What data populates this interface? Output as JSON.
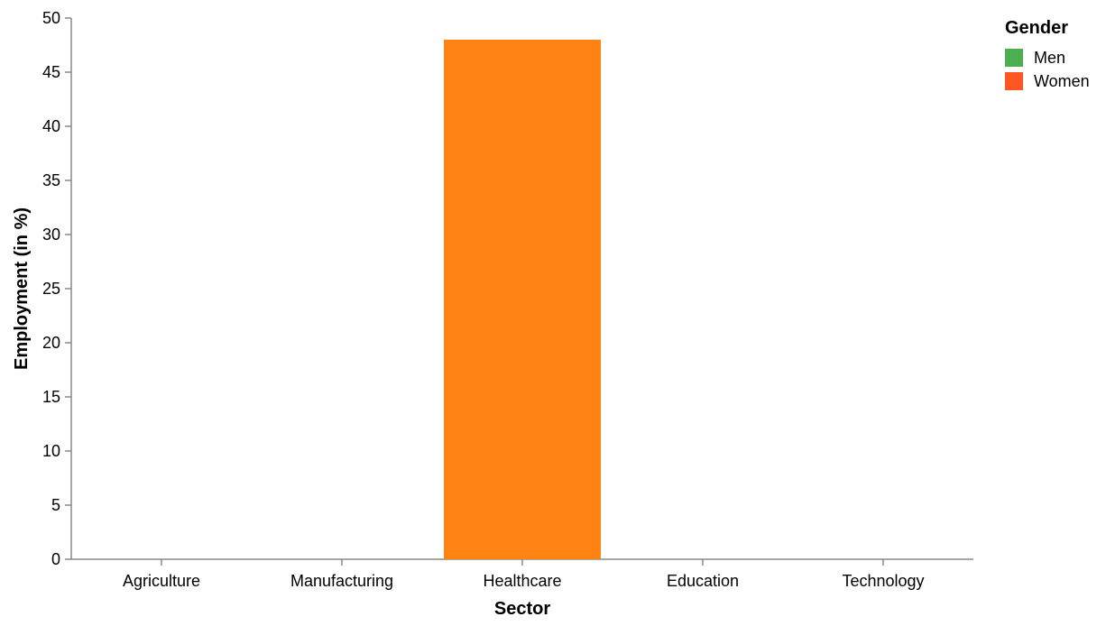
{
  "chart_data": {
    "type": "bar",
    "categories": [
      "Agriculture",
      "Manufacturing",
      "Healthcare",
      "Education",
      "Technology"
    ],
    "series": [
      {
        "name": "Men",
        "color": "#4caf50",
        "values": [
          0,
          0,
          0,
          0,
          0
        ]
      },
      {
        "name": "Women",
        "color": "#ff8312",
        "values": [
          0,
          0,
          48,
          0,
          0
        ]
      }
    ],
    "xlabel": "Sector",
    "ylabel": "Employment (in %)",
    "ylim": [
      0,
      50
    ],
    "yticks": [
      0,
      5,
      10,
      15,
      20,
      25,
      30,
      35,
      40,
      45,
      50
    ],
    "grid": false,
    "legend": {
      "title": "Gender",
      "placement": "top-right",
      "entries": [
        {
          "label": "Men",
          "color": "#4caf50"
        },
        {
          "label": "Women",
          "color": "#ff5722"
        }
      ]
    }
  }
}
